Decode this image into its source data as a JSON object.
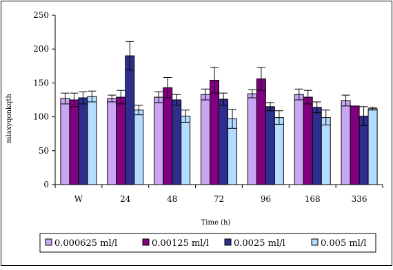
{
  "chart_data": {
    "type": "bar",
    "title": "",
    "xlabel": "Time (h)",
    "ylabel": "mlaxyqonkqth",
    "ylim": [
      0,
      250
    ],
    "yticks": [
      "0",
      "50",
      "100",
      "150",
      "200",
      "250"
    ],
    "categories": [
      "W",
      "24",
      "48",
      "72",
      "96",
      "168",
      "336"
    ],
    "grid": false,
    "legend_position": "bottom",
    "series": [
      {
        "name": "0.000625 ml/l",
        "color": "#c9a6f2",
        "values": [
          127,
          127,
          129,
          133,
          134,
          133,
          124
        ],
        "errors": [
          8,
          5,
          8,
          8,
          6,
          8,
          8
        ]
      },
      {
        "name": "0.00125 ml/l",
        "color": "#800080",
        "values": [
          125,
          129,
          143,
          154,
          156,
          129,
          116
        ],
        "errors": [
          10,
          10,
          15,
          19,
          17,
          10,
          0
        ]
      },
      {
        "name": "0.0025 ml/l",
        "color": "#2e2e8c",
        "values": [
          128,
          190,
          125,
          126,
          115,
          114,
          101
        ],
        "errors": [
          9,
          21,
          8,
          9,
          6,
          8,
          14
        ]
      },
      {
        "name": "0.005 ml/l",
        "color": "#b3dcff",
        "values": [
          130,
          110,
          101,
          97,
          99,
          99,
          112
        ],
        "errors": [
          8,
          7,
          9,
          14,
          10,
          11,
          2
        ]
      }
    ]
  }
}
